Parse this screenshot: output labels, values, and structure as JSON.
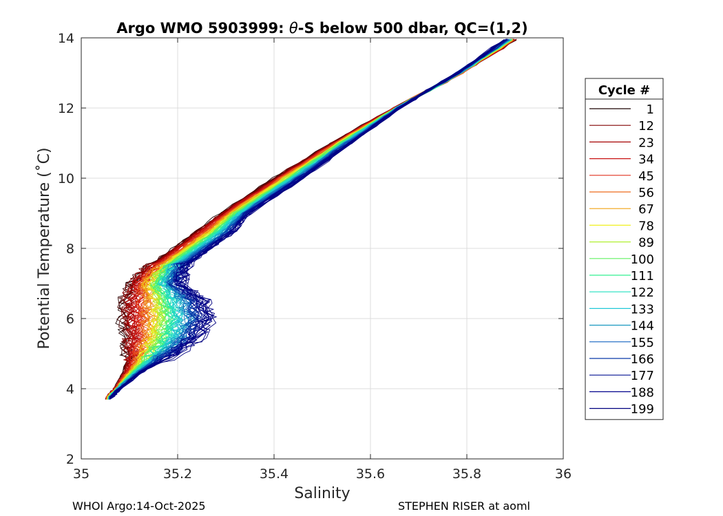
{
  "chart_data": {
    "type": "line",
    "title_prefix": "Argo WMO 5903999: ",
    "title_theta": "θ",
    "title_suffix": "-S below 500 dbar,  QC=(1,2)",
    "xlabel": "Salinity",
    "ylabel": "Potential Temperature (˚C)",
    "xlim": [
      35,
      36
    ],
    "ylim": [
      2,
      14
    ],
    "xticks": [
      35,
      35.2,
      35.4,
      35.6,
      35.8,
      36
    ],
    "xtick_labels": [
      "35",
      "35.2",
      "35.4",
      "35.6",
      "35.8",
      "36"
    ],
    "yticks": [
      2,
      4,
      6,
      8,
      10,
      12,
      14
    ],
    "ytick_labels": [
      "2",
      "4",
      "6",
      "8",
      "10",
      "12",
      "14"
    ],
    "grid": true,
    "legend": {
      "title": "Cycle #",
      "placement": "outside-right",
      "entries": [
        "1",
        "12",
        "23",
        "34",
        "45",
        "56",
        "67",
        "78",
        "89",
        "100",
        "111",
        "122",
        "133",
        "144",
        "155",
        "166",
        "177",
        "188",
        "199"
      ],
      "colors": [
        "#1a0000",
        "#800000",
        "#a50000",
        "#c81010",
        "#e0301e",
        "#ee6a1a",
        "#f0a010",
        "#f0f020",
        "#b0f030",
        "#60f060",
        "#30f090",
        "#20e0c0",
        "#20c8d8",
        "#1898c0",
        "#1060c0",
        "#0838a8",
        "#041090",
        "#00008c",
        "#00007f"
      ]
    },
    "series_template": {
      "theta": [
        13.95,
        13.0,
        12.0,
        11.0,
        10.0,
        9.0,
        8.5,
        8.0,
        7.5,
        7.0,
        6.5,
        6.0,
        5.5,
        5.0,
        4.5,
        4.0,
        3.7
      ],
      "cycle_1_salinity": [
        35.9,
        35.79,
        35.65,
        35.52,
        35.4,
        35.29,
        35.24,
        35.19,
        35.14,
        35.1,
        35.085,
        35.085,
        35.09,
        35.095,
        35.09,
        35.07,
        35.05
      ],
      "cycle_199_salinity": [
        35.88,
        35.78,
        35.66,
        35.56,
        35.46,
        35.35,
        35.32,
        35.27,
        35.22,
        35.21,
        35.26,
        35.27,
        35.25,
        35.2,
        35.13,
        35.08,
        35.06
      ]
    }
  },
  "footer": {
    "left": "WHOI Argo:14-Oct-2025",
    "right": "STEPHEN RISER at aoml"
  }
}
